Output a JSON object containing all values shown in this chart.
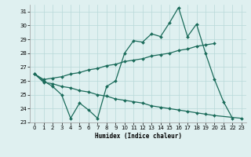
{
  "xlabel": "Humidex (Indice chaleur)",
  "x_values": [
    0,
    1,
    2,
    3,
    4,
    5,
    6,
    7,
    8,
    9,
    10,
    11,
    12,
    13,
    14,
    15,
    16,
    17,
    18,
    19,
    20,
    21,
    22,
    23
  ],
  "line_jagged": [
    26.5,
    26.0,
    25.6,
    25.0,
    23.3,
    24.4,
    23.9,
    23.3,
    25.6,
    26.0,
    28.0,
    28.9,
    28.8,
    29.4,
    29.2,
    30.2,
    31.3,
    29.2,
    30.1,
    28.0,
    26.1,
    24.5,
    23.3,
    null
  ],
  "line_upper_trend": [
    26.5,
    26.1,
    26.2,
    26.3,
    26.5,
    26.6,
    26.8,
    26.9,
    27.1,
    27.2,
    27.4,
    27.5,
    27.6,
    27.8,
    27.9,
    28.0,
    28.2,
    28.3,
    28.5,
    28.6,
    28.7,
    null,
    null,
    null
  ],
  "line_lower_trend": [
    26.5,
    25.9,
    25.8,
    25.6,
    25.5,
    25.3,
    25.2,
    25.0,
    24.9,
    24.7,
    24.6,
    24.5,
    24.4,
    24.2,
    24.1,
    24.0,
    23.9,
    23.8,
    23.7,
    23.6,
    23.5,
    null,
    null,
    23.3
  ],
  "color": "#1a6b5a",
  "bg_color": "#dff0f0",
  "grid_color": "#b8d8d8",
  "ylim": [
    23.0,
    31.5
  ],
  "yticks": [
    23,
    24,
    25,
    26,
    27,
    28,
    29,
    30,
    31
  ],
  "xticks": [
    0,
    1,
    2,
    3,
    4,
    5,
    6,
    7,
    8,
    9,
    10,
    11,
    12,
    13,
    14,
    15,
    16,
    17,
    18,
    19,
    20,
    21,
    22,
    23
  ],
  "xlim": [
    -0.5,
    23.5
  ]
}
